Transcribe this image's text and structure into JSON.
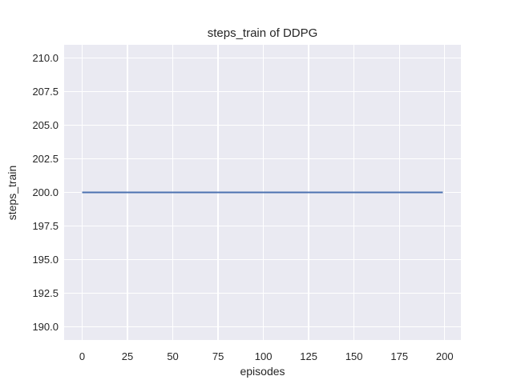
{
  "figure": {
    "title": "steps_train of DDPG",
    "xlabel": "episodes",
    "ylabel": "steps_train"
  },
  "colors": {
    "figure_background": "#ffffff",
    "axes_background": "#eaeaf2",
    "gridline": "#ffffff",
    "text": "#262626",
    "line": "#4c72b0"
  },
  "chart_data": {
    "type": "line",
    "title": "steps_train of DDPG",
    "xlabel": "episodes",
    "ylabel": "steps_train",
    "x_ticks": [
      0,
      25,
      50,
      75,
      100,
      125,
      150,
      175,
      200
    ],
    "x_tick_labels": [
      "0",
      "25",
      "50",
      "75",
      "100",
      "125",
      "150",
      "175",
      "200"
    ],
    "y_ticks": [
      190.0,
      192.5,
      195.0,
      197.5,
      200.0,
      202.5,
      205.0,
      207.5,
      210.0
    ],
    "y_tick_labels": [
      "190.0",
      "192.5",
      "195.0",
      "197.5",
      "200.0",
      "202.5",
      "205.0",
      "207.5",
      "210.0"
    ],
    "xlim": [
      -9.95,
      208.95
    ],
    "ylim": [
      189.0,
      211.0
    ],
    "grid": true,
    "legend": "none",
    "series": [
      {
        "name": "steps_train",
        "color": "#4c72b0",
        "description": "constant value 200 for every episode from 0 to 199",
        "x": [
          0,
          199
        ],
        "y": [
          200,
          200
        ]
      }
    ]
  }
}
